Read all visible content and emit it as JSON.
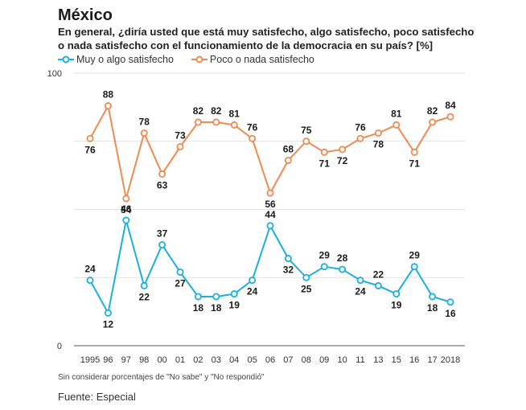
{
  "chart_data": {
    "type": "line",
    "title": "México",
    "subtitle": "En general, ¿diría usted que está muy satisfecho, algo satisfecho, poco satisfecho o nada satisfecho con el funcionamiento de la democracia en su país? [%]",
    "categories": [
      "1995",
      "96",
      "97",
      "98",
      "00",
      "01",
      "02",
      "03",
      "04",
      "05",
      "06",
      "07",
      "08",
      "09",
      "10",
      "11",
      "13",
      "15",
      "16",
      "17",
      "2018"
    ],
    "series": [
      {
        "name": "Muy o algo satisfecho",
        "color": "#1ab0e0",
        "values": [
          24,
          12,
          46,
          22,
          37,
          27,
          18,
          18,
          19,
          24,
          44,
          32,
          25,
          29,
          28,
          24,
          22,
          19,
          29,
          18,
          16
        ]
      },
      {
        "name": "Poco o nada satisfecho",
        "color": "#f08a50",
        "values": [
          76,
          88,
          54,
          78,
          63,
          73,
          82,
          82,
          81,
          76,
          56,
          68,
          75,
          71,
          72,
          76,
          78,
          81,
          71,
          82,
          84
        ]
      }
    ],
    "ylim": [
      0,
      100
    ],
    "yticks": [
      0,
      100
    ],
    "grid": true,
    "legend": "top-left"
  },
  "note": "Sin considerar porcentajes de \"No sabe\" y \"No respondió\"",
  "source": "Fuente: Especial",
  "colors": {
    "grid": "#d9d9d9",
    "axis": "#555555"
  }
}
